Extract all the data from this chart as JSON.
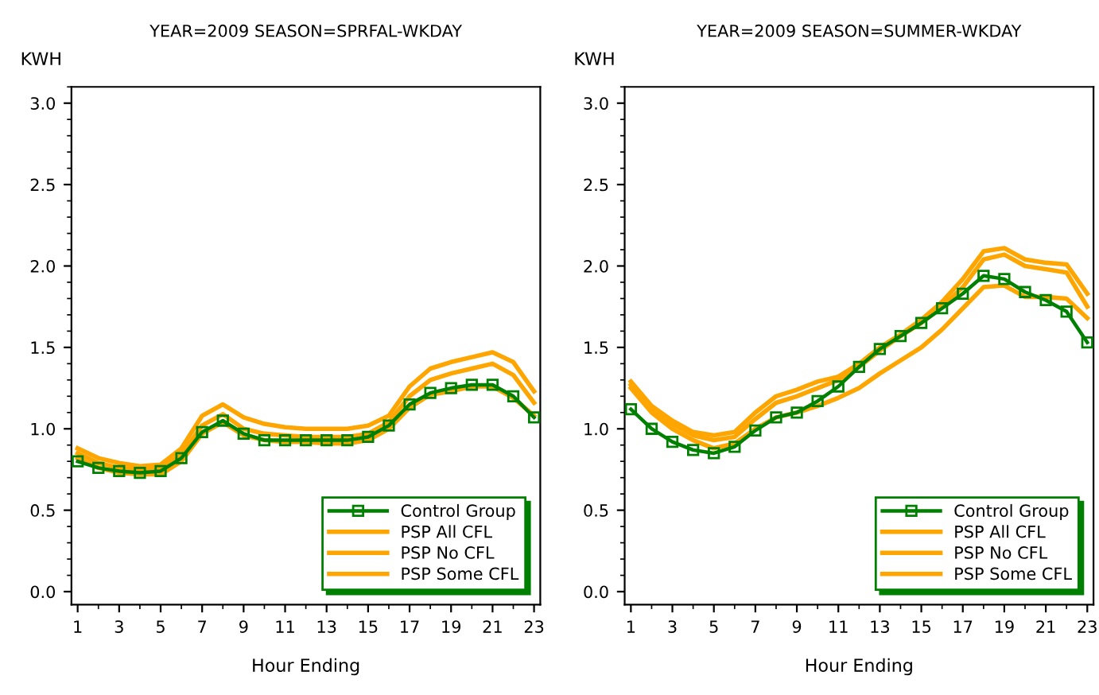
{
  "chart_data": [
    {
      "type": "line",
      "title": "YEAR=2009 SEASON=SPRFAL-WKDAY",
      "ylabel": "KWH",
      "xlabel": "Hour Ending",
      "x": [
        1,
        2,
        3,
        4,
        5,
        6,
        7,
        8,
        9,
        10,
        11,
        12,
        13,
        14,
        15,
        16,
        17,
        18,
        19,
        20,
        21,
        22,
        23
      ],
      "xlim": [
        0.7,
        23.3
      ],
      "ylim": [
        -0.08,
        3.1
      ],
      "xticks": [
        1,
        3,
        5,
        7,
        9,
        11,
        13,
        15,
        17,
        19,
        21,
        23
      ],
      "yticks": [
        {
          "value": 0,
          "label": "0.0"
        },
        {
          "value": 0.5,
          "label": "0.5"
        },
        {
          "value": 1,
          "label": "1.0"
        },
        {
          "value": 1.5,
          "label": "1.5"
        },
        {
          "value": 2,
          "label": "2.0"
        },
        {
          "value": 2.5,
          "label": "2.5"
        },
        {
          "value": 3,
          "label": "3.0"
        }
      ],
      "grid": false,
      "legend": "bottom right",
      "line_style": "solid",
      "series": [
        {
          "name": "Control Group",
          "color": "#008000",
          "marker": "square",
          "values": [
            0.8,
            0.76,
            0.74,
            0.73,
            0.74,
            0.82,
            0.98,
            1.05,
            0.97,
            0.93,
            0.93,
            0.93,
            0.93,
            0.93,
            0.95,
            1.02,
            1.15,
            1.22,
            1.25,
            1.27,
            1.27,
            1.2,
            1.07
          ]
        },
        {
          "name": "PSP All CFL",
          "color": "#ffa500",
          "values": [
            0.82,
            0.76,
            0.73,
            0.72,
            0.72,
            0.8,
            0.97,
            1.04,
            0.96,
            0.93,
            0.92,
            0.92,
            0.91,
            0.91,
            0.93,
            1.0,
            1.13,
            1.21,
            1.23,
            1.26,
            1.26,
            1.19,
            1.08
          ]
        },
        {
          "name": "PSP No CFL",
          "color": "#ffa500",
          "values": [
            0.85,
            0.79,
            0.76,
            0.75,
            0.76,
            0.84,
            1.02,
            1.09,
            1.0,
            0.97,
            0.96,
            0.95,
            0.95,
            0.95,
            0.97,
            1.04,
            1.2,
            1.3,
            1.34,
            1.37,
            1.4,
            1.33,
            1.16
          ]
        },
        {
          "name": "PSP Some CFL",
          "color": "#ffa500",
          "values": [
            0.88,
            0.82,
            0.79,
            0.77,
            0.78,
            0.88,
            1.08,
            1.15,
            1.07,
            1.03,
            1.01,
            1.0,
            1.0,
            1.0,
            1.02,
            1.08,
            1.26,
            1.37,
            1.41,
            1.44,
            1.47,
            1.41,
            1.23
          ]
        }
      ]
    },
    {
      "type": "line",
      "title": "YEAR=2009 SEASON=SUMMER-WKDAY",
      "ylabel": "KWH",
      "xlabel": "Hour Ending",
      "x": [
        1,
        2,
        3,
        4,
        5,
        6,
        7,
        8,
        9,
        10,
        11,
        12,
        13,
        14,
        15,
        16,
        17,
        18,
        19,
        20,
        21,
        22,
        23
      ],
      "xlim": [
        0.7,
        23.3
      ],
      "ylim": [
        -0.08,
        3.1
      ],
      "xticks": [
        1,
        3,
        5,
        7,
        9,
        11,
        13,
        15,
        17,
        19,
        21,
        23
      ],
      "yticks": [
        {
          "value": 0,
          "label": "0.0"
        },
        {
          "value": 0.5,
          "label": "0.5"
        },
        {
          "value": 1,
          "label": "1.0"
        },
        {
          "value": 1.5,
          "label": "1.5"
        },
        {
          "value": 2,
          "label": "2.0"
        },
        {
          "value": 2.5,
          "label": "2.5"
        },
        {
          "value": 3,
          "label": "3.0"
        }
      ],
      "grid": false,
      "legend": "bottom right",
      "line_style": "solid",
      "series": [
        {
          "name": "Control Group",
          "color": "#008000",
          "marker": "square",
          "values": [
            1.12,
            1.0,
            0.92,
            0.87,
            0.85,
            0.89,
            0.99,
            1.07,
            1.1,
            1.17,
            1.26,
            1.38,
            1.49,
            1.57,
            1.65,
            1.74,
            1.83,
            1.94,
            1.92,
            1.84,
            1.79,
            1.72,
            1.53
          ]
        },
        {
          "name": "PSP All CFL",
          "color": "#ffa500",
          "values": [
            1.25,
            1.1,
            1.0,
            0.93,
            0.88,
            0.91,
            1.0,
            1.07,
            1.1,
            1.14,
            1.19,
            1.25,
            1.34,
            1.42,
            1.5,
            1.61,
            1.74,
            1.87,
            1.88,
            1.81,
            1.81,
            1.8,
            1.68
          ]
        },
        {
          "name": "PSP No CFL",
          "color": "#ffa500",
          "values": [
            1.27,
            1.12,
            1.03,
            0.96,
            0.93,
            0.95,
            1.06,
            1.16,
            1.2,
            1.25,
            1.3,
            1.38,
            1.48,
            1.57,
            1.65,
            1.75,
            1.87,
            2.04,
            2.07,
            2.0,
            1.98,
            1.96,
            1.75
          ]
        },
        {
          "name": "PSP Some CFL",
          "color": "#ffa500",
          "values": [
            1.29,
            1.14,
            1.05,
            0.98,
            0.96,
            0.98,
            1.1,
            1.2,
            1.24,
            1.29,
            1.32,
            1.4,
            1.5,
            1.58,
            1.67,
            1.78,
            1.92,
            2.09,
            2.11,
            2.04,
            2.02,
            2.01,
            1.83
          ]
        }
      ]
    }
  ]
}
